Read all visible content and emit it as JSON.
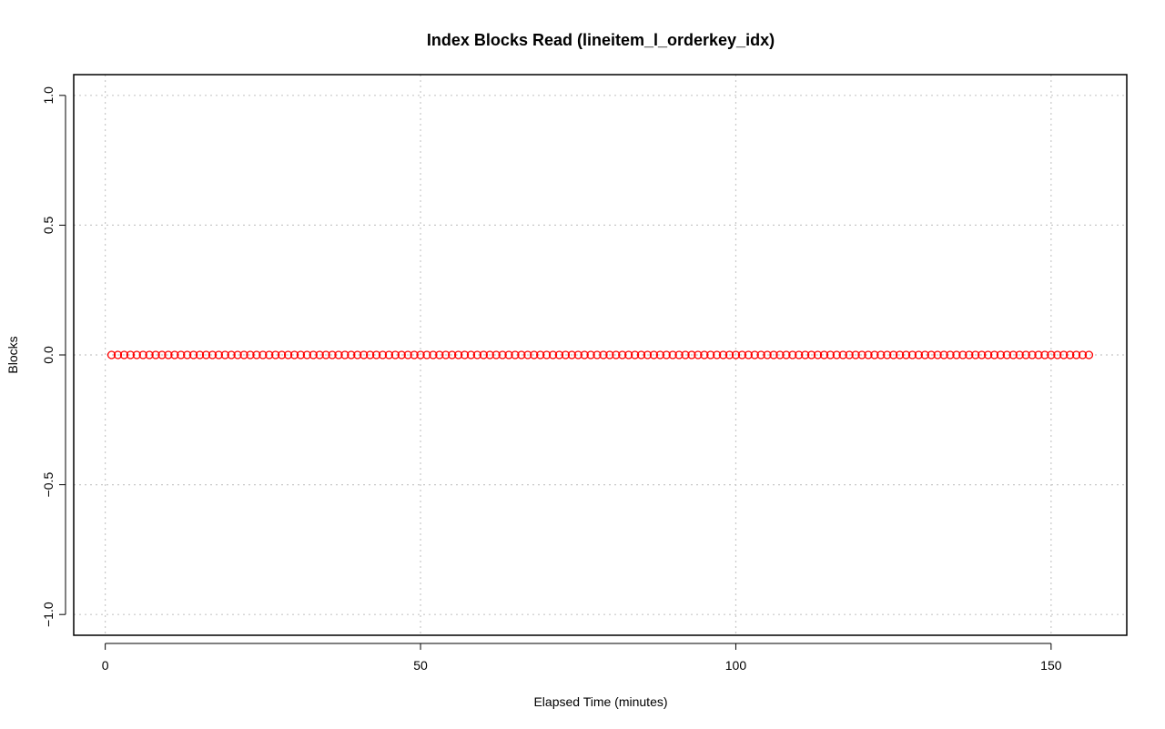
{
  "chart_data": {
    "type": "scatter",
    "title": "Index Blocks Read (lineitem_l_orderkey_idx)",
    "xlabel": "Elapsed Time (minutes)",
    "ylabel": "Blocks",
    "xlim": [
      -5,
      162
    ],
    "ylim": [
      -1.08,
      1.08
    ],
    "x_ticks": [
      0,
      50,
      100,
      150
    ],
    "x_tick_labels": [
      "0",
      "50",
      "100",
      "150"
    ],
    "y_ticks": [
      -1.0,
      -0.5,
      0.0,
      0.5,
      1.0
    ],
    "y_tick_labels": [
      "−1.0",
      "−0.5",
      "0.0",
      "0.5",
      "1.0"
    ],
    "grid": true,
    "legend": "none",
    "point_color": "#ff0000",
    "series": [
      {
        "x_start": 1,
        "x_end": 156,
        "x_step": 1,
        "y_constant": 0
      }
    ]
  }
}
